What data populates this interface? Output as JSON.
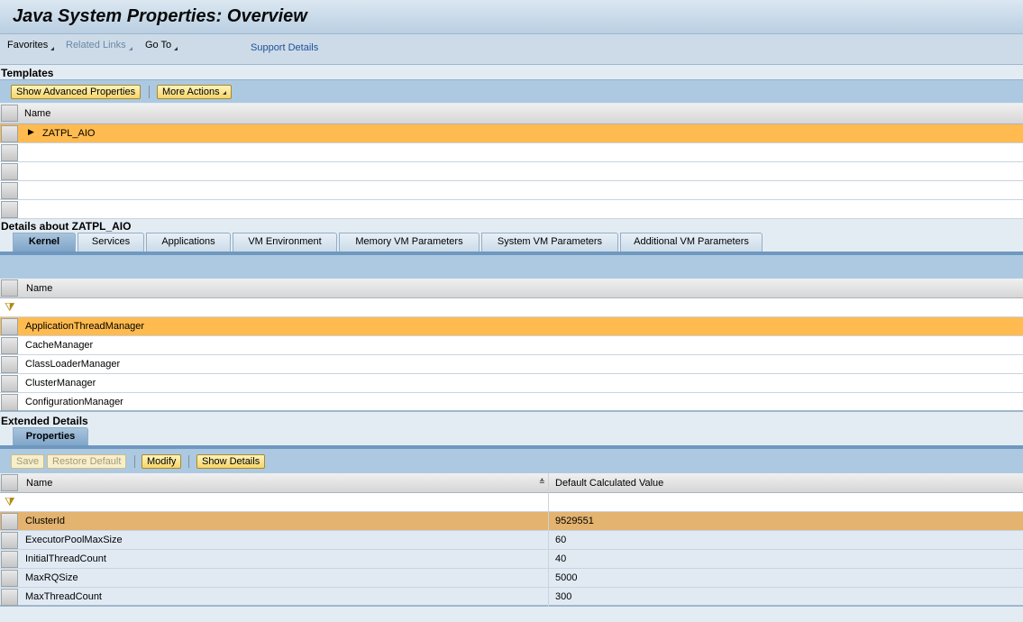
{
  "title": "Java System Properties: Overview",
  "menu": {
    "favorites": "Favorites",
    "related_links": "Related Links",
    "go_to": "Go To",
    "support_details": "Support Details"
  },
  "templates": {
    "label": "Templates",
    "buttons": {
      "show_advanced": "Show Advanced Properties",
      "more_actions": "More Actions"
    },
    "column": "Name",
    "rows": [
      "ZATPL_AIO"
    ]
  },
  "details": {
    "label": "Details about ZATPL_AIO",
    "tabs": [
      "Kernel",
      "Services",
      "Applications",
      "VM Environment",
      "Memory VM Parameters",
      "System VM Parameters",
      "Additional VM Parameters"
    ],
    "active_tab": "Kernel",
    "column": "Name",
    "rows": [
      "ApplicationThreadManager",
      "CacheManager",
      "ClassLoaderManager",
      "ClusterManager",
      "ConfigurationManager"
    ]
  },
  "extended": {
    "label": "Extended Details",
    "tab": "Properties",
    "buttons": {
      "save": "Save",
      "restore_default": "Restore Default",
      "modify": "Modify",
      "show_details": "Show Details"
    },
    "columns": [
      "Name",
      "Default Calculated Value"
    ],
    "rows": [
      {
        "name": "ClusterId",
        "value": "9529551"
      },
      {
        "name": "ExecutorPoolMaxSize",
        "value": "60"
      },
      {
        "name": "InitialThreadCount",
        "value": "40"
      },
      {
        "name": "MaxRQSize",
        "value": "5000"
      },
      {
        "name": "MaxThreadCount",
        "value": "300"
      }
    ]
  },
  "colors": {
    "selected_row": "#ffbb4f",
    "selected_row_lower": "#e3b36f",
    "toolbar": "#adc9e1"
  }
}
